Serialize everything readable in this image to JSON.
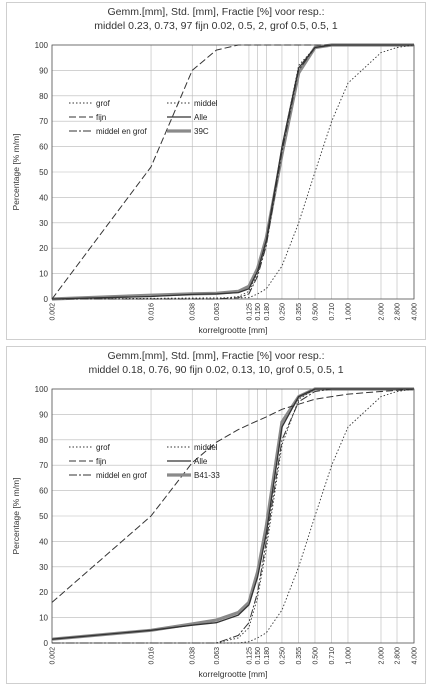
{
  "charts": [
    {
      "title_line1": "Gemm.[mm], Std. [mm], Fractie [%] voor resp.:",
      "title_line2": "middel 0.23, 0.73, 97 fijn 0.02, 0.5, 2, grof 0.5, 0.5, 1",
      "ylabel": "Percentage [% m/m]",
      "xlabel": "korrelgrootte [mm]"
    },
    {
      "title_line1": "Gemm.[mm], Std. [mm], Fractie [%] voor resp.:",
      "title_line2": "middel 0.18, 0.76, 90 fijn 0.02, 0.13, 10, grof 0.5, 0.5, 1",
      "ylabel": "Percentage [% m/m]",
      "xlabel": "korrelgrootte [mm]"
    }
  ],
  "colors": {
    "line": "#333333",
    "sample": "#8a8a8a",
    "grid": "#b8b8b8"
  },
  "chart_data": [
    {
      "type": "line",
      "x_scale": "log",
      "x_ticks": [
        "0.002",
        "0.016",
        "0.038",
        "0.063",
        "0.125",
        "0.150",
        "0.180",
        "0.250",
        "0.355",
        "0.500",
        "0.710",
        "1.000",
        "2.000",
        "2.800",
        "4.000"
      ],
      "y_ticks": [
        "0",
        "10",
        "20",
        "30",
        "40",
        "50",
        "60",
        "70",
        "80",
        "90",
        "100"
      ],
      "ylim": [
        0,
        100
      ],
      "legend": [
        {
          "label": "grof",
          "style": "dotted"
        },
        {
          "label": "middel",
          "style": "dotted"
        },
        {
          "label": "fijn",
          "style": "dashed"
        },
        {
          "label": "Alle",
          "style": "solid"
        },
        {
          "label": "middel en grof",
          "style": "dashdot"
        },
        {
          "label": "39C",
          "style": "thick-gray"
        }
      ],
      "series": [
        {
          "name": "grof",
          "style": "dotted",
          "x": [
            0.002,
            0.125,
            0.15,
            0.18,
            0.25,
            0.355,
            0.5,
            0.71,
            1.0,
            2.0,
            2.8,
            4.0
          ],
          "y": [
            0,
            0.5,
            2,
            4,
            13,
            30,
            50,
            70,
            85,
            97,
            99,
            100
          ]
        },
        {
          "name": "middel",
          "style": "dotted",
          "x": [
            0.002,
            0.063,
            0.1,
            0.125,
            0.15,
            0.18,
            0.25,
            0.355,
            0.5,
            0.71,
            1.0,
            4.0
          ],
          "y": [
            0,
            0,
            1,
            3,
            10,
            22,
            60,
            92,
            99,
            100,
            100,
            100
          ]
        },
        {
          "name": "fijn",
          "style": "dashed",
          "x": [
            0.002,
            0.016,
            0.038,
            0.063,
            0.1,
            0.125,
            0.18,
            0.25,
            4.0
          ],
          "y": [
            0,
            52,
            90,
            98,
            100,
            100,
            100,
            100,
            100
          ]
        },
        {
          "name": "Alle",
          "style": "solid",
          "x": [
            0.002,
            0.016,
            0.038,
            0.063,
            0.1,
            0.125,
            0.15,
            0.18,
            0.25,
            0.355,
            0.5,
            0.71,
            1.0,
            4.0
          ],
          "y": [
            0,
            1,
            1.8,
            2,
            2.5,
            4,
            11,
            23,
            60,
            91,
            99,
            100,
            100,
            100
          ]
        },
        {
          "name": "middel en grof",
          "style": "dashdot",
          "x": [
            0.002,
            0.063,
            0.1,
            0.125,
            0.15,
            0.18,
            0.25,
            0.355,
            0.5,
            0.71,
            4.0
          ],
          "y": [
            0,
            0,
            0.5,
            2,
            9,
            21,
            58,
            90,
            99,
            100,
            100
          ]
        },
        {
          "name": "39C",
          "style": "thick-gray",
          "x": [
            0.002,
            0.016,
            0.038,
            0.063,
            0.1,
            0.125,
            0.15,
            0.18,
            0.25,
            0.355,
            0.5,
            0.71,
            1.0,
            4.0
          ],
          "y": [
            0,
            1.5,
            2,
            2.2,
            3,
            5,
            12,
            24,
            57,
            89,
            99,
            100,
            100,
            100
          ]
        }
      ]
    },
    {
      "type": "line",
      "x_scale": "log",
      "x_ticks": [
        "0.002",
        "0.016",
        "0.038",
        "0.063",
        "0.125",
        "0.150",
        "0.180",
        "0.250",
        "0.355",
        "0.500",
        "0.710",
        "1.000",
        "2.000",
        "2.800",
        "4.000"
      ],
      "y_ticks": [
        "0",
        "10",
        "20",
        "30",
        "40",
        "50",
        "60",
        "70",
        "80",
        "90",
        "100"
      ],
      "ylim": [
        0,
        100
      ],
      "legend": [
        {
          "label": "grof",
          "style": "dotted"
        },
        {
          "label": "middel",
          "style": "dotted"
        },
        {
          "label": "fijn",
          "style": "dashed"
        },
        {
          "label": "Alle",
          "style": "solid"
        },
        {
          "label": "middel en grof",
          "style": "dashdot"
        },
        {
          "label": "B41-33",
          "style": "thick-gray"
        }
      ],
      "series": [
        {
          "name": "grof",
          "style": "dotted",
          "x": [
            0.002,
            0.1,
            0.125,
            0.15,
            0.18,
            0.25,
            0.355,
            0.5,
            0.71,
            1.0,
            2.0,
            2.8,
            4.0
          ],
          "y": [
            0,
            0,
            0.5,
            2,
            4,
            13,
            30,
            50,
            70,
            85,
            97,
            99,
            100
          ]
        },
        {
          "name": "middel",
          "style": "dotted",
          "x": [
            0.002,
            0.063,
            0.1,
            0.125,
            0.15,
            0.18,
            0.25,
            0.355,
            0.5,
            0.71,
            4.0
          ],
          "y": [
            0,
            0,
            2,
            6,
            18,
            37,
            78,
            96,
            100,
            100,
            100
          ]
        },
        {
          "name": "fijn",
          "style": "dashed",
          "x": [
            0.002,
            0.016,
            0.038,
            0.063,
            0.1,
            0.125,
            0.18,
            0.25,
            0.355,
            0.5,
            0.71,
            1.0,
            2.0,
            4.0
          ],
          "y": [
            16,
            50,
            71,
            79,
            84,
            86,
            89,
            92,
            94,
            96,
            97,
            98,
            99,
            100
          ]
        },
        {
          "name": "Alle",
          "style": "solid",
          "x": [
            0.002,
            0.016,
            0.038,
            0.063,
            0.1,
            0.125,
            0.15,
            0.18,
            0.25,
            0.355,
            0.5,
            0.71,
            1.0,
            4.0
          ],
          "y": [
            1.5,
            5,
            7,
            8,
            11,
            15,
            26,
            43,
            85,
            97,
            100,
            100,
            100,
            100
          ]
        },
        {
          "name": "middel en grof",
          "style": "dashdot",
          "x": [
            0.002,
            0.063,
            0.1,
            0.125,
            0.15,
            0.18,
            0.25,
            0.355,
            0.5,
            0.71,
            4.0
          ],
          "y": [
            0,
            0,
            3,
            8,
            20,
            40,
            80,
            95,
            99,
            100,
            100
          ]
        },
        {
          "name": "B41-33",
          "style": "thick-gray",
          "x": [
            0.002,
            0.016,
            0.038,
            0.063,
            0.1,
            0.125,
            0.15,
            0.18,
            0.25,
            0.355,
            0.5,
            0.71,
            1.0,
            4.0
          ],
          "y": [
            1.5,
            5,
            7.5,
            9,
            12,
            16,
            28,
            46,
            87,
            97,
            100,
            100,
            100,
            100
          ]
        }
      ]
    }
  ]
}
